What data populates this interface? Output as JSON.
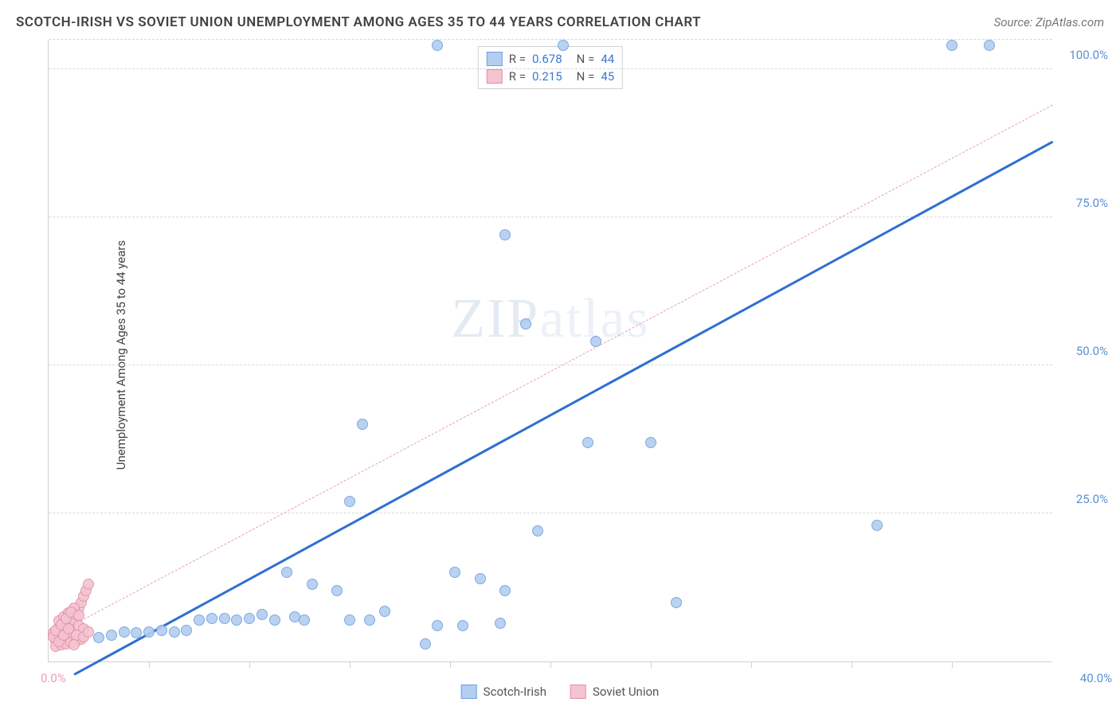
{
  "title": "SCOTCH-IRISH VS SOVIET UNION UNEMPLOYMENT AMONG AGES 35 TO 44 YEARS CORRELATION CHART",
  "source": "Source: ZipAtlas.com",
  "ylabel": "Unemployment Among Ages 35 to 44 years",
  "watermark": "ZIPatlas",
  "chart": {
    "type": "scatter",
    "background_color": "#ffffff",
    "grid_color": "#d8d8d8",
    "axis_color": "#d0d0d0",
    "xlim": [
      0,
      40
    ],
    "ylim": [
      0,
      105
    ],
    "x_tick_label_left": "0.0%",
    "x_tick_label_right": "40.0%",
    "x_tick_left_color": "#e8a0b0",
    "x_tick_right_color": "#5b8fd6",
    "y_ticks": [
      25,
      50,
      75,
      100
    ],
    "y_tick_labels": [
      "25.0%",
      "50.0%",
      "75.0%",
      "100.0%"
    ],
    "y_tick_color": "#5b8fd6",
    "x_minor_ticks": [
      4,
      8,
      12,
      16,
      20,
      24,
      28,
      32,
      36
    ],
    "marker_radius": 7,
    "marker_border_width": 1.5,
    "series": [
      {
        "name": "Scotch-Irish",
        "fill_color": "#b3cef0",
        "border_color": "#6fa0dd",
        "fill_opacity": 0.55,
        "R": "0.678",
        "N": "44",
        "trend": {
          "x1": 1,
          "y1": -2,
          "x2": 40,
          "y2": 88,
          "color": "#2f6fd0",
          "width": 2.5,
          "style": "solid"
        },
        "points": [
          [
            15.5,
            104
          ],
          [
            20.5,
            104
          ],
          [
            36,
            104
          ],
          [
            37.5,
            104
          ],
          [
            18.2,
            72
          ],
          [
            19,
            57
          ],
          [
            21.8,
            54
          ],
          [
            12.5,
            40
          ],
          [
            12,
            27
          ],
          [
            21.5,
            37
          ],
          [
            24,
            37
          ],
          [
            19.5,
            22
          ],
          [
            33,
            23
          ],
          [
            9.5,
            15
          ],
          [
            10.5,
            13
          ],
          [
            11.5,
            12
          ],
          [
            15,
            3
          ],
          [
            15.5,
            6
          ],
          [
            16.5,
            6
          ],
          [
            16.2,
            15
          ],
          [
            17.2,
            14
          ],
          [
            18,
            6.5
          ],
          [
            18.2,
            12
          ],
          [
            12,
            7
          ],
          [
            12.8,
            7
          ],
          [
            13.4,
            8.5
          ],
          [
            25,
            10
          ],
          [
            2,
            4
          ],
          [
            2.5,
            4.5
          ],
          [
            3,
            5
          ],
          [
            3.5,
            4.8
          ],
          [
            4,
            5
          ],
          [
            4.5,
            5.2
          ],
          [
            5,
            5
          ],
          [
            5.5,
            5.3
          ],
          [
            6,
            7
          ],
          [
            6.5,
            7.2
          ],
          [
            7,
            7.3
          ],
          [
            7.5,
            7
          ],
          [
            8,
            7.2
          ],
          [
            8.5,
            8
          ],
          [
            9,
            7
          ],
          [
            9.8,
            7.5
          ],
          [
            10.2,
            7
          ]
        ]
      },
      {
        "name": "Soviet Union",
        "fill_color": "#f4c4d0",
        "border_color": "#e58fa8",
        "fill_opacity": 0.55,
        "R": "0.215",
        "N": "45",
        "trend": {
          "x1": 0,
          "y1": 4,
          "x2": 40,
          "y2": 94,
          "color": "#e8a0b0",
          "width": 1.5,
          "style": "dashed"
        },
        "points": [
          [
            0.3,
            4
          ],
          [
            0.5,
            4.5
          ],
          [
            0.6,
            5
          ],
          [
            0.8,
            5.2
          ],
          [
            0.4,
            5.8
          ],
          [
            0.7,
            6
          ],
          [
            0.9,
            6.5
          ],
          [
            0.3,
            3.5
          ],
          [
            0.5,
            3.8
          ],
          [
            0.8,
            4.2
          ],
          [
            0.2,
            4.8
          ],
          [
            0.6,
            5.5
          ],
          [
            0.9,
            4.8
          ],
          [
            1.0,
            7
          ],
          [
            1.1,
            8
          ],
          [
            1.2,
            9
          ],
          [
            1.3,
            10
          ],
          [
            1.4,
            11
          ],
          [
            1.5,
            12
          ],
          [
            1.6,
            13
          ],
          [
            0.3,
            2.5
          ],
          [
            0.5,
            2.8
          ],
          [
            0.7,
            3.0
          ],
          [
            0.9,
            3.2
          ],
          [
            1.1,
            3.5
          ],
          [
            1.3,
            3.8
          ],
          [
            0.4,
            6.8
          ],
          [
            0.6,
            7.5
          ],
          [
            0.8,
            8.2
          ],
          [
            1.0,
            9
          ],
          [
            1.2,
            6
          ],
          [
            1.4,
            5.5
          ],
          [
            0.2,
            4.2
          ],
          [
            0.3,
            5.3
          ],
          [
            0.5,
            6.2
          ],
          [
            0.7,
            7.3
          ],
          [
            0.9,
            8.4
          ],
          [
            1.1,
            4.5
          ],
          [
            0.4,
            3.3
          ],
          [
            0.6,
            4.4
          ],
          [
            0.8,
            5.5
          ],
          [
            1.0,
            2.8
          ],
          [
            1.2,
            7.8
          ],
          [
            1.4,
            4.2
          ],
          [
            1.6,
            5
          ]
        ]
      }
    ]
  },
  "legend": {
    "items": [
      "Scotch-Irish",
      "Soviet Union"
    ]
  }
}
